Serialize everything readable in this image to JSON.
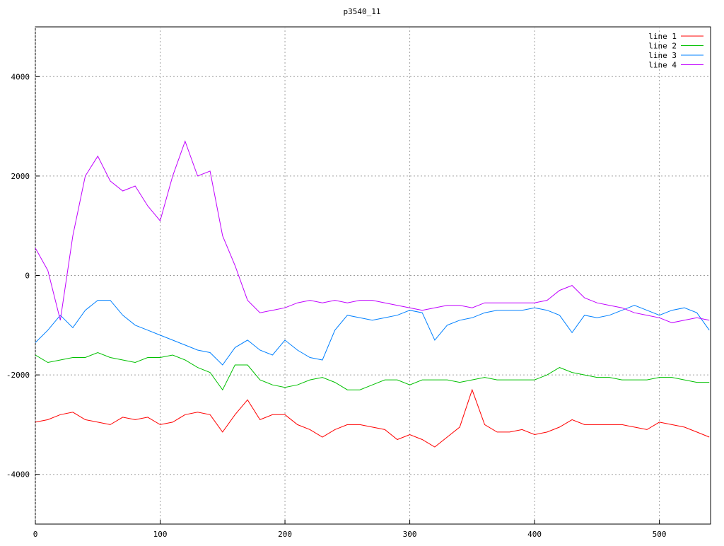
{
  "chart_data": {
    "type": "line",
    "title": "p3540_11",
    "x": [
      0,
      10,
      20,
      30,
      40,
      50,
      60,
      70,
      80,
      90,
      100,
      110,
      120,
      130,
      140,
      150,
      160,
      170,
      180,
      190,
      200,
      210,
      220,
      230,
      240,
      250,
      260,
      270,
      280,
      290,
      300,
      310,
      320,
      330,
      340,
      350,
      360,
      370,
      380,
      390,
      400,
      410,
      420,
      430,
      440,
      450,
      460,
      470,
      480,
      490,
      500,
      510,
      520,
      530,
      540
    ],
    "series": [
      {
        "name": "line 1",
        "color": "#ff0000",
        "values": [
          -2950,
          -2900,
          -2800,
          -2750,
          -2900,
          -2950,
          -3000,
          -2850,
          -2900,
          -2850,
          -3000,
          -2950,
          -2800,
          -2750,
          -2800,
          -3150,
          -2800,
          -2500,
          -2900,
          -2800,
          -2800,
          -3000,
          -3100,
          -3250,
          -3100,
          -3000,
          -3000,
          -3050,
          -3100,
          -3300,
          -3200,
          -3300,
          -3450,
          -3250,
          -3050,
          -2300,
          -3000,
          -3150,
          -3150,
          -3100,
          -3200,
          -3150,
          -3050,
          -2900,
          -3000,
          -3000,
          -3000,
          -3000,
          -3050,
          -3100,
          -2950,
          -3000,
          -3050,
          -3150,
          -3250
        ]
      },
      {
        "name": "line 2",
        "color": "#00c000",
        "values": [
          -1600,
          -1750,
          -1700,
          -1650,
          -1650,
          -1550,
          -1650,
          -1700,
          -1750,
          -1650,
          -1650,
          -1600,
          -1700,
          -1850,
          -1950,
          -2300,
          -1800,
          -1800,
          -2100,
          -2200,
          -2250,
          -2200,
          -2100,
          -2050,
          -2150,
          -2300,
          -2300,
          -2200,
          -2100,
          -2100,
          -2200,
          -2100,
          -2100,
          -2100,
          -2150,
          -2100,
          -2050,
          -2100,
          -2100,
          -2100,
          -2100,
          -2000,
          -1850,
          -1950,
          -2000,
          -2050,
          -2050,
          -2100,
          -2100,
          -2100,
          -2050,
          -2050,
          -2100,
          -2150,
          -2150
        ]
      },
      {
        "name": "line 3",
        "color": "#0080ff",
        "values": [
          -1350,
          -1100,
          -800,
          -1050,
          -700,
          -500,
          -500,
          -800,
          -1000,
          -1100,
          -1200,
          -1300,
          -1400,
          -1500,
          -1550,
          -1800,
          -1450,
          -1300,
          -1500,
          -1600,
          -1300,
          -1500,
          -1650,
          -1700,
          -1100,
          -800,
          -850,
          -900,
          -850,
          -800,
          -700,
          -750,
          -1300,
          -1000,
          -900,
          -850,
          -750,
          -700,
          -700,
          -700,
          -650,
          -700,
          -800,
          -1150,
          -800,
          -850,
          -800,
          -700,
          -600,
          -700,
          -800,
          -700,
          -650,
          -750,
          -1100
        ]
      },
      {
        "name": "line 4",
        "color": "#c000ff",
        "values": [
          550,
          100,
          -900,
          800,
          2000,
          2400,
          1900,
          1700,
          1800,
          1400,
          1100,
          2000,
          2700,
          2000,
          2100,
          800,
          200,
          -500,
          -750,
          -700,
          -650,
          -550,
          -500,
          -550,
          -500,
          -550,
          -500,
          -500,
          -550,
          -600,
          -650,
          -700,
          -650,
          -600,
          -600,
          -650,
          -550,
          -550,
          -550,
          -550,
          -550,
          -500,
          -300,
          -200,
          -450,
          -550,
          -600,
          -650,
          -750,
          -800,
          -850,
          -950,
          -900,
          -850,
          -900
        ]
      }
    ],
    "xlim": [
      0,
      541
    ],
    "ylim": [
      -5000,
      5000
    ],
    "xticks": [
      0,
      100,
      200,
      300,
      400,
      500
    ],
    "yticks": [
      -4000,
      -2000,
      0,
      2000,
      4000
    ],
    "grid": true,
    "legend": "top-right"
  }
}
